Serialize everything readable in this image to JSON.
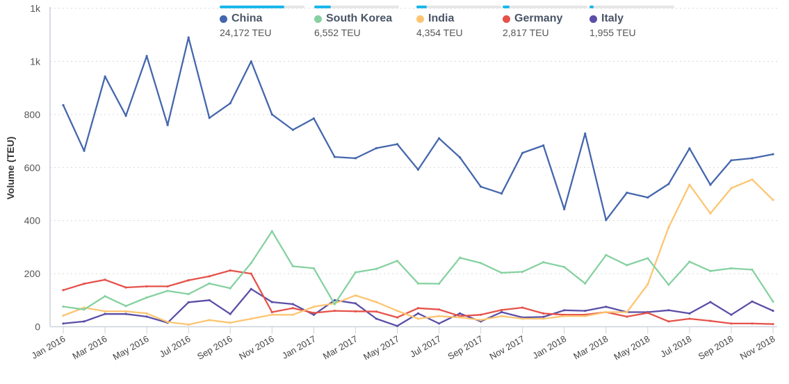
{
  "chart_data": {
    "type": "line",
    "title": "",
    "xlabel": "",
    "ylabel": "Volume (TEU)",
    "ylim": [
      0,
      1200
    ],
    "yticks": [
      {
        "v": 0,
        "label": "0"
      },
      {
        "v": 200,
        "label": "200"
      },
      {
        "v": 400,
        "label": "400"
      },
      {
        "v": 600,
        "label": "600"
      },
      {
        "v": 800,
        "label": "800"
      },
      {
        "v": 1000,
        "label": "1k"
      },
      {
        "v": 1200,
        "label": "1k"
      }
    ],
    "grid": true,
    "legend_position": "top",
    "x": [
      "Jan 2016",
      "Feb 2016",
      "Mar 2016",
      "Apr 2016",
      "May 2016",
      "Jun 2016",
      "Jul 2016",
      "Aug 2016",
      "Sep 2016",
      "Oct 2016",
      "Nov 2016",
      "Dec 2016",
      "Jan 2017",
      "Feb 2017",
      "Mar 2017",
      "Apr 2017",
      "May 2017",
      "Jun 2017",
      "Jul 2017",
      "Aug 2017",
      "Sep 2017",
      "Oct 2017",
      "Nov 2017",
      "Dec 2017",
      "Jan 2018",
      "Feb 2018",
      "Mar 2018",
      "Apr 2018",
      "May 2018",
      "Jun 2018",
      "Jul 2018",
      "Aug 2018",
      "Sep 2018",
      "Oct 2018",
      "Nov 2018"
    ],
    "xtick_labels": [
      "Jan 2016",
      "Mar 2016",
      "May 2016",
      "Jul 2016",
      "Sep 2016",
      "Nov 2016",
      "Jan 2017",
      "Mar 2017",
      "May 2017",
      "Jul 2017",
      "Sep 2017",
      "Nov 2017",
      "Jan 2018",
      "Mar 2018",
      "May 2018",
      "Jul 2018",
      "Sep 2018",
      "Nov 2018"
    ],
    "series": [
      {
        "name": "China",
        "total": "24,172 TEU",
        "color": "#4466ad",
        "share": 0.76,
        "values": [
          835,
          663,
          943,
          795,
          1020,
          760,
          1090,
          787,
          842,
          1000,
          800,
          742,
          785,
          640,
          635,
          673,
          688,
          592,
          710,
          638,
          528,
          502,
          655,
          683,
          443,
          728,
          402,
          505,
          487,
          538,
          672,
          535,
          627,
          635,
          650
        ]
      },
      {
        "name": "South Korea",
        "total": "6,552 TEU",
        "color": "#86d1a0",
        "share": 0.2,
        "values": [
          76,
          65,
          115,
          78,
          110,
          135,
          123,
          163,
          145,
          240,
          360,
          228,
          220,
          85,
          205,
          218,
          248,
          163,
          162,
          260,
          240,
          203,
          207,
          243,
          225,
          163,
          270,
          232,
          258,
          158,
          245,
          210,
          220,
          215,
          95
        ]
      },
      {
        "name": "India",
        "total": "4,354 TEU",
        "color": "#fdc572",
        "share": 0.12,
        "values": [
          42,
          72,
          58,
          58,
          50,
          18,
          8,
          25,
          15,
          30,
          45,
          45,
          75,
          88,
          118,
          93,
          60,
          30,
          40,
          35,
          25,
          40,
          30,
          30,
          40,
          40,
          55,
          55,
          160,
          375,
          535,
          427,
          522,
          555,
          478
        ]
      },
      {
        "name": "Germany",
        "total": "2,817 TEU",
        "color": "#e5524a",
        "share": 0.08,
        "values": [
          138,
          162,
          177,
          148,
          152,
          152,
          175,
          190,
          212,
          200,
          55,
          70,
          52,
          60,
          58,
          57,
          35,
          70,
          65,
          40,
          45,
          63,
          72,
          50,
          45,
          45,
          55,
          38,
          52,
          20,
          30,
          22,
          12,
          12,
          10
        ]
      },
      {
        "name": "Italy",
        "total": "1,955 TEU",
        "color": "#5a4ea6",
        "share": 0.05,
        "values": [
          12,
          20,
          48,
          48,
          38,
          15,
          92,
          100,
          48,
          142,
          93,
          85,
          45,
          100,
          88,
          30,
          3,
          50,
          12,
          50,
          20,
          55,
          35,
          37,
          62,
          60,
          75,
          55,
          55,
          62,
          50,
          93,
          45,
          95,
          60
        ]
      }
    ]
  }
}
